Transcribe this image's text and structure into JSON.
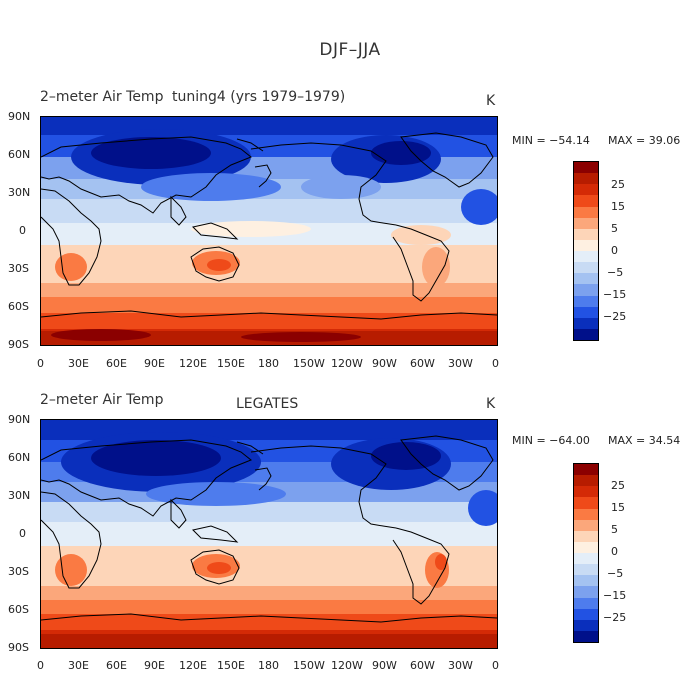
{
  "title": "DJF–JJA",
  "colorscale": {
    "colors": [
      "#8b0000",
      "#b71c00",
      "#d42a06",
      "#ef4a19",
      "#fa7a43",
      "#fba77b",
      "#fdd5b8",
      "#fef0e1",
      "#e4eef8",
      "#c8dbf4",
      "#a4c2f1",
      "#7ca1ee",
      "#4e7ced",
      "#2252e3",
      "#0a2fbc",
      "#00108a"
    ],
    "tick_labels": [
      "25",
      "15",
      "5",
      "0",
      "−5",
      "−15",
      "−25"
    ]
  },
  "panels": [
    {
      "id": "model",
      "variable": "2–meter Air Temp",
      "case": "tuning4 (yrs 1979–1979)",
      "unit": "K",
      "min_label": "MIN = −54.14",
      "max_label": "MAX =  39.06",
      "lat_ticks": [
        "90N",
        "60N",
        "30N",
        "0",
        "30S",
        "60S",
        "90S"
      ],
      "lon_ticks": [
        "0",
        "30E",
        "60E",
        "90E",
        "120E",
        "150E",
        "180",
        "150W",
        "120W",
        "90W",
        "60W",
        "30W",
        "0"
      ]
    },
    {
      "id": "obs",
      "variable": "2–meter Air Temp",
      "case": "LEGATES",
      "unit": "K",
      "min_label": "MIN = −64.00",
      "max_label": "MAX =  34.54",
      "lat_ticks": [
        "90N",
        "60N",
        "30N",
        "0",
        "30S",
        "60S",
        "90S"
      ],
      "lon_ticks": [
        "0",
        "30E",
        "60E",
        "90E",
        "120E",
        "150E",
        "180",
        "150W",
        "120W",
        "90W",
        "60W",
        "30W",
        "0"
      ]
    }
  ]
}
